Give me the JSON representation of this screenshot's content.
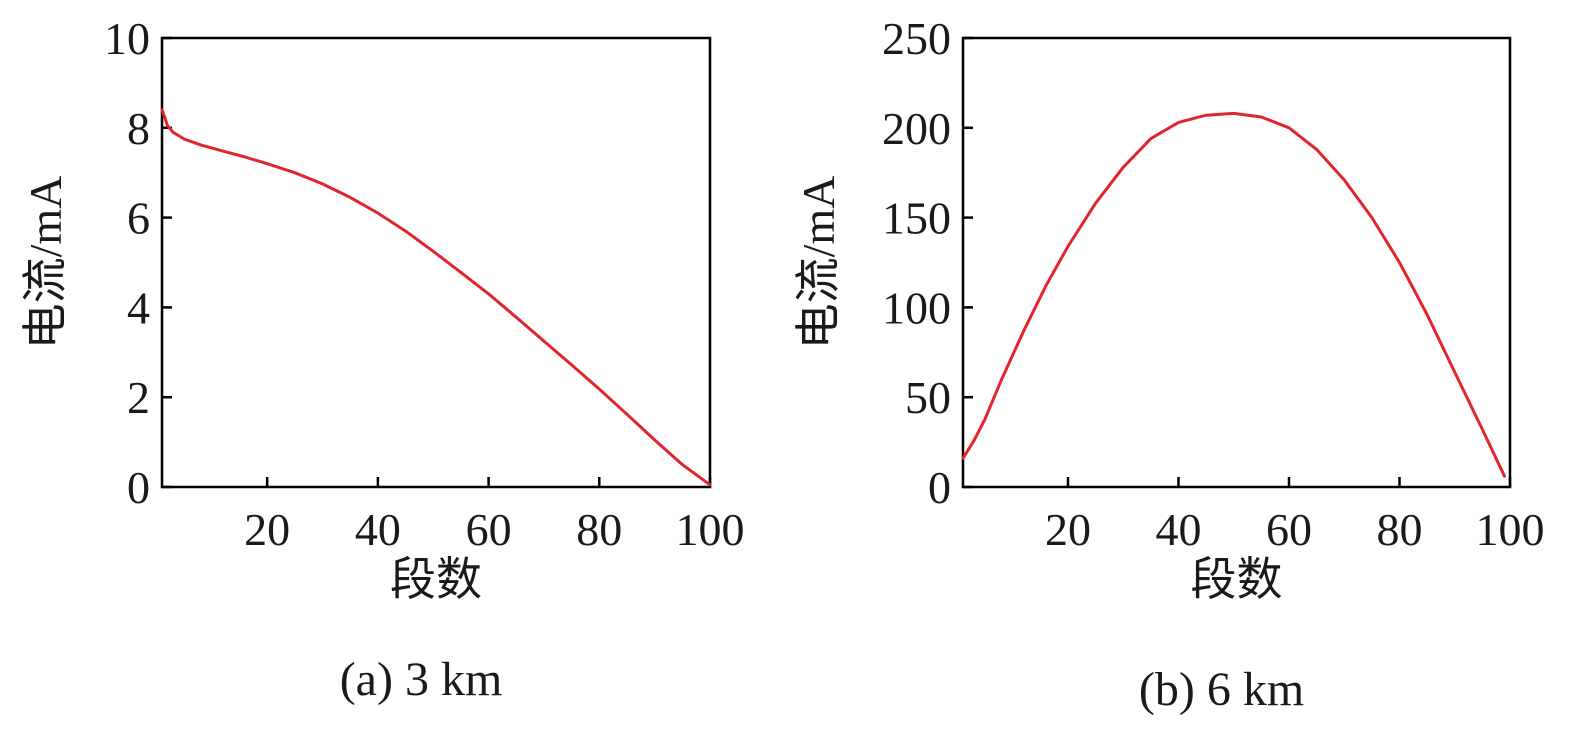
{
  "chart_data": [
    {
      "type": "line",
      "caption": "(a) 3 km",
      "xlabel": "段数",
      "ylabel": "电流/mA",
      "xlim": [
        1,
        100
      ],
      "ylim": [
        0,
        10
      ],
      "xticks": [
        20,
        40,
        60,
        80,
        100
      ],
      "yticks": [
        0,
        2,
        4,
        6,
        8,
        10
      ],
      "xtick_labels": [
        "20",
        "40",
        "60",
        "80",
        "100"
      ],
      "ytick_labels": [
        "0",
        "2",
        "4",
        "6",
        "8",
        "10"
      ],
      "grid": false,
      "series": [
        {
          "color": "#e0262b",
          "x": [
            1,
            2,
            3,
            5,
            8,
            12,
            16,
            20,
            25,
            30,
            35,
            40,
            45,
            50,
            55,
            60,
            65,
            70,
            75,
            80,
            85,
            90,
            95,
            100
          ],
          "y": [
            8.4,
            8.05,
            7.9,
            7.75,
            7.62,
            7.48,
            7.35,
            7.2,
            7.0,
            6.75,
            6.45,
            6.1,
            5.7,
            5.25,
            4.78,
            4.3,
            3.78,
            3.25,
            2.72,
            2.18,
            1.62,
            1.05,
            0.5,
            0.05
          ]
        }
      ]
    },
    {
      "type": "line",
      "caption": "(b) 6 km",
      "xlabel": "段数",
      "ylabel": "电流/mA",
      "xlim": [
        1,
        100
      ],
      "ylim": [
        0,
        250
      ],
      "xticks": [
        20,
        40,
        60,
        80,
        100
      ],
      "yticks": [
        0,
        50,
        100,
        150,
        200,
        250
      ],
      "xtick_labels": [
        "20",
        "40",
        "60",
        "80",
        "100"
      ],
      "ytick_labels": [
        "0",
        "50",
        "100",
        "150",
        "200",
        "250"
      ],
      "grid": false,
      "series": [
        {
          "color": "#e0262b",
          "x": [
            1,
            3,
            5,
            8,
            12,
            16,
            20,
            25,
            30,
            35,
            40,
            45,
            50,
            55,
            60,
            65,
            70,
            75,
            80,
            85,
            90,
            95,
            99
          ],
          "y": [
            16,
            26,
            38,
            60,
            87,
            112,
            134,
            158,
            178,
            194,
            203,
            207,
            208,
            206,
            200,
            188,
            171,
            150,
            125,
            96,
            64,
            32,
            6
          ]
        }
      ]
    }
  ]
}
